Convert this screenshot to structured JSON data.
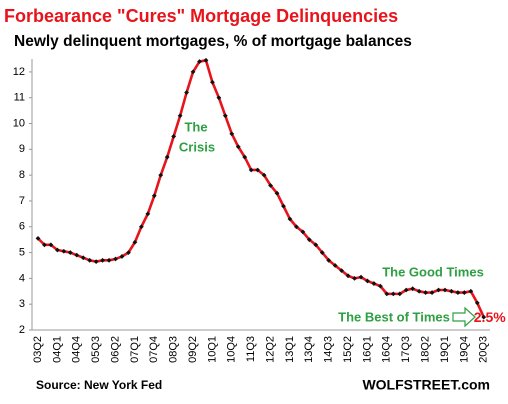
{
  "chart_data": {
    "type": "line",
    "title": "Forbearance \"Cures\" Mortgage Delinquencies",
    "subtitle": "Newly delinquent mortgages, % of mortgage balances",
    "source": "Source: New York Fed",
    "brand": "WOLFSTREET.com",
    "categories": [
      "03Q2",
      null,
      null,
      "04Q1",
      null,
      null,
      "04Q4",
      null,
      null,
      "05Q3",
      null,
      null,
      "06Q2",
      null,
      null,
      "07Q1",
      null,
      null,
      "07Q4",
      null,
      null,
      "08Q3",
      null,
      null,
      "09Q2",
      null,
      null,
      "10Q1",
      null,
      null,
      "10Q4",
      null,
      null,
      "11Q3",
      null,
      null,
      "12Q2",
      null,
      null,
      "13Q1",
      null,
      null,
      "13Q4",
      null,
      null,
      "14Q3",
      null,
      null,
      "15Q2",
      null,
      null,
      "16Q1",
      null,
      null,
      "16Q4",
      null,
      null,
      "17Q3",
      null,
      null,
      "18Q2",
      null,
      null,
      "19Q1",
      null,
      null,
      "19Q4",
      null,
      null,
      "20Q3"
    ],
    "values": [
      5.55,
      5.3,
      5.3,
      5.1,
      5.05,
      5.0,
      4.9,
      4.8,
      4.7,
      4.65,
      4.7,
      4.7,
      4.75,
      4.85,
      5.0,
      5.4,
      6.0,
      6.5,
      7.2,
      8.0,
      8.7,
      9.5,
      10.3,
      11.2,
      12.0,
      12.4,
      12.45,
      11.6,
      11.0,
      10.3,
      9.6,
      9.1,
      8.7,
      8.2,
      8.2,
      8.0,
      7.6,
      7.3,
      6.8,
      6.3,
      6.0,
      5.8,
      5.5,
      5.3,
      5.0,
      4.7,
      4.5,
      4.3,
      4.1,
      4.0,
      4.05,
      3.9,
      3.8,
      3.7,
      3.4,
      3.4,
      3.4,
      3.55,
      3.6,
      3.5,
      3.45,
      3.45,
      3.55,
      3.55,
      3.5,
      3.45,
      3.45,
      3.5,
      3.05,
      2.5
    ],
    "value_labels": [
      null,
      null,
      null,
      null,
      null,
      null,
      null,
      null,
      null,
      null,
      null,
      null,
      null,
      null,
      null,
      null,
      null,
      null,
      null,
      null,
      null,
      null,
      null,
      null,
      null,
      null,
      null,
      null,
      null,
      null,
      null,
      null,
      null,
      null,
      null,
      null,
      null,
      null,
      null,
      null,
      null,
      null,
      null,
      null,
      null,
      null,
      null,
      null,
      null,
      null,
      null,
      null,
      null,
      null,
      null,
      null,
      null,
      null,
      null,
      null,
      null,
      null,
      null,
      null,
      null,
      null,
      null,
      null,
      null,
      "2.5%"
    ],
    "color": "#e8141b",
    "marker_color": "#111111",
    "ylim": [
      2,
      12.5
    ],
    "yticks": [
      2,
      3,
      4,
      5,
      6,
      7,
      8,
      9,
      10,
      11,
      12
    ],
    "grid": false,
    "annotations": [
      {
        "lines": [
          "The",
          "Crisis"
        ]
      },
      {
        "lines": [
          "The Good Times"
        ]
      },
      {
        "lines": [
          "The Best of Times"
        ]
      }
    ]
  }
}
